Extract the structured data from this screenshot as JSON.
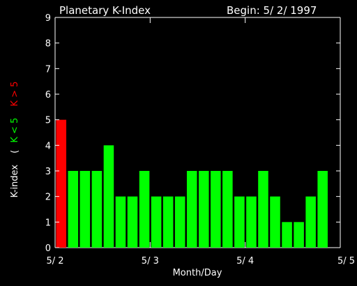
{
  "chart_data": {
    "type": "bar",
    "title": "Planetary K-Index",
    "begin_label": "Begin: 5/ 2/ 1997",
    "xlabel": "Month/Day",
    "ylabel": "K-index",
    "legend": {
      "open": "(",
      "green_label": "K < 5",
      "red_label": "K > 5"
    },
    "ylim": [
      0,
      9
    ],
    "yticks": [
      "0",
      "1",
      "2",
      "3",
      "4",
      "5",
      "6",
      "7",
      "8",
      "9"
    ],
    "xticks": [
      "5/ 2",
      "5/ 3",
      "5/ 4",
      "5/ 5"
    ],
    "xlim_days": [
      0,
      3
    ],
    "bars_per_day": 8,
    "values": [
      5,
      3,
      3,
      3,
      4,
      2,
      2,
      3,
      2,
      2,
      2,
      3,
      3,
      3,
      3,
      2,
      2,
      3,
      2,
      1,
      1,
      2,
      3
    ],
    "colors": {
      "low": "#00ff00",
      "high": "#ff0000",
      "threshold": 5
    }
  }
}
